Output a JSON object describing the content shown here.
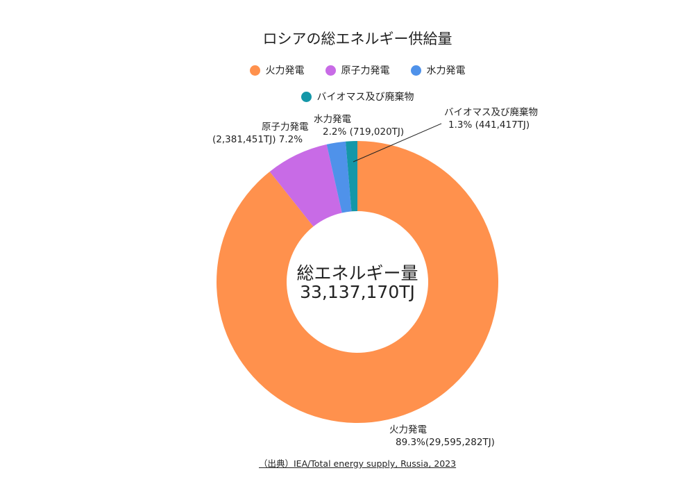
{
  "chart_data": {
    "type": "pie",
    "variant": "donut",
    "title": "ロシアの総エネルギー供給量",
    "unit": "TJ",
    "categories": [
      "火力発電",
      "原子力発電",
      "水力発電",
      "バイオマス及び廃棄物"
    ],
    "values": [
      29595282,
      2381451,
      719020,
      441417
    ],
    "percentages": [
      89.3,
      7.2,
      2.2,
      1.3
    ],
    "colors": [
      "#FF914D",
      "#C86BE6",
      "#4F92EA",
      "#1497A8"
    ],
    "total": 33137170,
    "legend_position": "top"
  },
  "title": "ロシアの総エネルギー供給量",
  "legend": [
    {
      "label": "火力発電",
      "color": "#FF914D"
    },
    {
      "label": "原子力発電",
      "color": "#C86BE6"
    },
    {
      "label": "水力発電",
      "color": "#4F92EA"
    },
    {
      "label": "バイオマス及び廃棄物",
      "color": "#1497A8"
    }
  ],
  "labels": {
    "thermal": {
      "name": "火力発電",
      "value": "89.3%(29,595,282TJ)"
    },
    "nuclear": {
      "name": "原子力発電",
      "value": "(2,381,451TJ) 7.2%"
    },
    "hydro": {
      "name": "水力発電",
      "value": "2.2% (719,020TJ)"
    },
    "biomass": {
      "name": "バイオマス及び廃棄物",
      "value": "1.3%  (441,417TJ)"
    }
  },
  "center": {
    "label": "総エネルギー量",
    "value": "33,137,170TJ"
  },
  "source": "（出典）IEA/Total energy supply, Russia, 2023"
}
